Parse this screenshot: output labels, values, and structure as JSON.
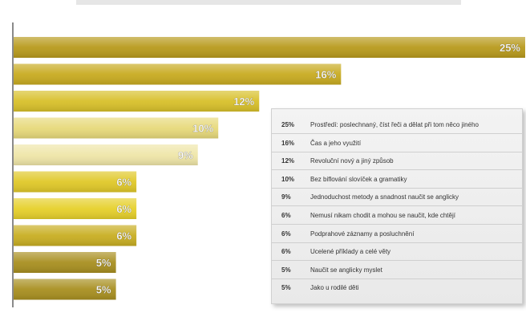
{
  "chart_data": {
    "type": "bar",
    "orientation": "horizontal",
    "categories": [
      "Prostředí: poslechnaný, číst řeči a dělat při tom něco jiného",
      "Čas a jeho využití",
      "Revoluční nový a jiný způsob",
      "Bez biflování slovíček a gramatiky",
      "Jednoduchost metody a snadnost naučit se anglicky",
      "Nemusí nikam chodit a mohou se naučit, kde chtějí",
      "Podprahové záznamy a posluchnění",
      "Ucelené příklady a celé věty",
      "Naučit se anglicky myslet",
      "Jako u rodilé děti"
    ],
    "values": [
      25,
      16,
      12,
      10,
      9,
      6,
      6,
      6,
      5,
      5
    ],
    "value_labels": [
      "25%",
      "16%",
      "12%",
      "10%",
      "9%",
      "6%",
      "6%",
      "6%",
      "5%",
      "5%"
    ],
    "xlim": [
      0,
      25
    ],
    "legend": "right",
    "colors": [
      "#b89a1c",
      "#c8ab20",
      "#d8c02a",
      "#e7d97a",
      "#efe6a8",
      "#e0c828",
      "#e6d02a",
      "#c8ae22",
      "#a88f20",
      "#a88f20"
    ]
  }
}
